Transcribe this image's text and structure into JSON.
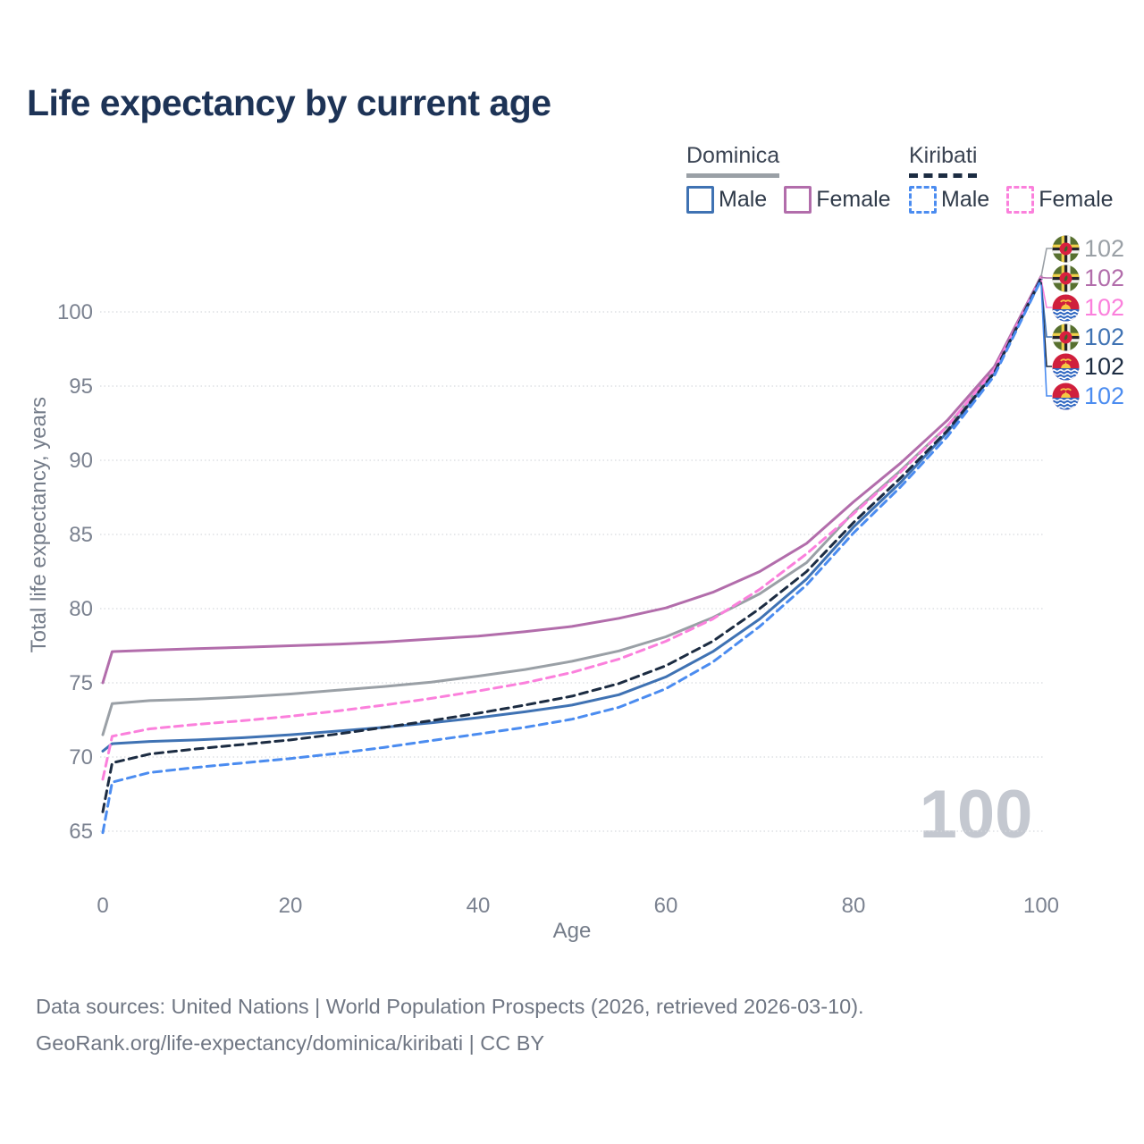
{
  "page": {
    "title": "Life expectancy by current age",
    "background": "#ffffff"
  },
  "legend": {
    "groups": [
      {
        "label": "Dominica",
        "line_style": "solid",
        "underline_color": "#9aa0a6",
        "items": [
          {
            "label": "Male",
            "color": "#3f72b3"
          },
          {
            "label": "Female",
            "color": "#b26dab"
          }
        ]
      },
      {
        "label": "Kiribati",
        "line_style": "dashed",
        "underline_color": "#1c2c42",
        "items": [
          {
            "label": "Male",
            "color": "#4b8cf0"
          },
          {
            "label": "Female",
            "color": "#fb80dc"
          }
        ]
      }
    ]
  },
  "chart_data": {
    "type": "line",
    "title": "Life expectancy by current age",
    "xlabel": "Age",
    "ylabel": "Total life expectancy, years",
    "xlim": [
      0,
      100
    ],
    "ylim": [
      65,
      102.5
    ],
    "x_ticks": [
      0,
      20,
      40,
      60,
      80,
      100
    ],
    "y_ticks": [
      65,
      70,
      75,
      80,
      85,
      90,
      95,
      100
    ],
    "grid": "horizontal-dotted",
    "legend_position": "top-right",
    "watermark": "100",
    "x": [
      0,
      1,
      5,
      10,
      15,
      20,
      25,
      30,
      35,
      40,
      45,
      50,
      55,
      60,
      65,
      70,
      75,
      80,
      85,
      90,
      95,
      100
    ],
    "series": [
      {
        "name": "Dominica",
        "country": "Dominica",
        "sex": "all",
        "line": "solid",
        "color": "#9aa0a6",
        "values": [
          71.5,
          73.6,
          73.8,
          73.9,
          74.05,
          74.25,
          74.5,
          74.75,
          75.05,
          75.45,
          75.9,
          76.45,
          77.15,
          78.1,
          79.4,
          81.0,
          83.1,
          86.5,
          89.3,
          92.3,
          96.1,
          102.4
        ]
      },
      {
        "name": "Dominica Female",
        "country": "Dominica",
        "sex": "female",
        "line": "solid",
        "color": "#b26dab",
        "values": [
          75.0,
          77.1,
          77.2,
          77.3,
          77.4,
          77.5,
          77.6,
          77.75,
          77.95,
          78.15,
          78.45,
          78.8,
          79.35,
          80.05,
          81.1,
          82.5,
          84.4,
          87.2,
          89.8,
          92.7,
          96.3,
          102.4
        ]
      },
      {
        "name": "Dominica Male",
        "country": "Dominica",
        "sex": "male",
        "line": "solid",
        "color": "#3f72b3",
        "values": [
          70.4,
          70.9,
          71.05,
          71.15,
          71.3,
          71.5,
          71.75,
          72.0,
          72.3,
          72.65,
          73.05,
          73.5,
          74.2,
          75.4,
          77.1,
          79.3,
          82.0,
          85.5,
          88.5,
          91.9,
          95.9,
          102.2
        ]
      },
      {
        "name": "Kiribati Female",
        "country": "Kiribati",
        "sex": "female",
        "line": "dashed",
        "color": "#fb80dc",
        "values": [
          68.5,
          71.4,
          71.9,
          72.2,
          72.45,
          72.75,
          73.1,
          73.5,
          73.95,
          74.45,
          75.0,
          75.7,
          76.6,
          77.8,
          79.3,
          81.3,
          83.7,
          86.4,
          89.2,
          92.3,
          96.1,
          102.3
        ]
      },
      {
        "name": "Kiribati",
        "country": "Kiribati",
        "sex": "all",
        "line": "dashed",
        "color": "#1c2c42",
        "values": [
          66.3,
          69.6,
          70.2,
          70.55,
          70.85,
          71.15,
          71.55,
          72.0,
          72.45,
          72.95,
          73.5,
          74.1,
          74.95,
          76.15,
          77.8,
          80.0,
          82.5,
          85.8,
          88.8,
          92.0,
          95.9,
          102.3
        ]
      },
      {
        "name": "Kiribati Male",
        "country": "Kiribati",
        "sex": "male",
        "line": "dashed",
        "color": "#4b8cf0",
        "values": [
          64.9,
          68.3,
          68.95,
          69.3,
          69.6,
          69.9,
          70.25,
          70.65,
          71.1,
          71.55,
          72.0,
          72.55,
          73.35,
          74.6,
          76.4,
          78.8,
          81.6,
          85.1,
          88.2,
          91.6,
          95.7,
          102.2
        ]
      }
    ],
    "end_labels": [
      {
        "series": "Dominica",
        "value": "102"
      },
      {
        "series": "Dominica Female",
        "value": "102"
      },
      {
        "series": "Kiribati Female",
        "value": "102"
      },
      {
        "series": "Dominica Male",
        "value": "102"
      },
      {
        "series": "Kiribati",
        "value": "102"
      },
      {
        "series": "Kiribati Male",
        "value": "102"
      }
    ]
  },
  "footer": {
    "line1": "Data sources: United Nations | World Population Prospects (2026, retrieved 2026-03-10).",
    "line2": "GeoRank.org/life-expectancy/dominica/kiribati | CC BY"
  }
}
